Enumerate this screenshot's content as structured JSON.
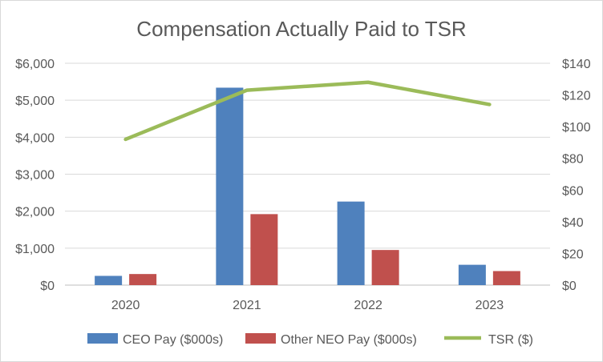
{
  "chart_data": {
    "type": "bar",
    "title": "Compensation Actually Paid to TSR",
    "categories": [
      "2020",
      "2021",
      "2022",
      "2023"
    ],
    "series": [
      {
        "name": "CEO Pay ($000s)",
        "kind": "bar",
        "axis": "left",
        "color": "#4f81bd",
        "values": [
          250,
          5340,
          2260,
          550
        ]
      },
      {
        "name": "Other NEO Pay ($000s)",
        "kind": "bar",
        "axis": "left",
        "color": "#c0504d",
        "values": [
          300,
          1920,
          950,
          380
        ]
      },
      {
        "name": "TSR ($)",
        "kind": "line",
        "axis": "right",
        "color": "#9bbb59",
        "values": [
          92,
          123,
          128,
          114
        ]
      }
    ],
    "y_left": {
      "min": 0,
      "max": 6000,
      "ticks": [
        0,
        1000,
        2000,
        3000,
        4000,
        5000,
        6000
      ],
      "tick_labels": [
        "$0",
        "$1,000",
        "$2,000",
        "$3,000",
        "$4,000",
        "$5,000",
        "$6,000"
      ]
    },
    "y_right": {
      "min": 0,
      "max": 140,
      "ticks": [
        0,
        20,
        40,
        60,
        80,
        100,
        120,
        140
      ],
      "tick_labels": [
        "$0",
        "$20",
        "$40",
        "$60",
        "$80",
        "$100",
        "$120",
        "$140"
      ]
    },
    "grid": true,
    "legend_position": "bottom"
  }
}
